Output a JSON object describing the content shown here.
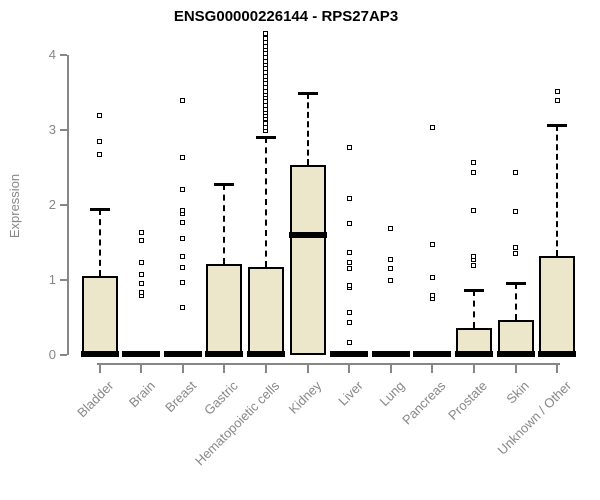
{
  "chart_data": {
    "type": "boxplot",
    "title": "ENSG00000226144 - RPS27AP3",
    "ylabel": "Expression",
    "ylim": [
      0,
      4
    ],
    "yticks": [
      0,
      1,
      2,
      3,
      4
    ],
    "grid": false,
    "box_fill": "#ECE6CB",
    "axis_color": "#878787",
    "label_color": "#878787",
    "categories": [
      "Bladder",
      "Brain",
      "Breast",
      "Gastric",
      "Hematopoietic cells",
      "Kidney",
      "Liver",
      "Lung",
      "Pancreas",
      "Prostate",
      "Skin",
      "Unknown / Other"
    ],
    "boxes": [
      {
        "category": "Bladder",
        "q1": 0,
        "median": 0.02,
        "q3": 1.05,
        "whisker_low": 0,
        "whisker_high": 1.95,
        "outliers": [
          2.68,
          2.85,
          3.2
        ]
      },
      {
        "category": "Brain",
        "q1": 0,
        "median": 0.02,
        "q3": 0,
        "whisker_low": 0,
        "whisker_high": 0,
        "outliers": [
          0.8,
          0.84,
          0.96,
          1.07,
          1.23,
          1.53,
          1.63
        ]
      },
      {
        "category": "Breast",
        "q1": 0,
        "median": 0.02,
        "q3": 0,
        "whisker_low": 0,
        "whisker_high": 0,
        "outliers": [
          0.63,
          0.97,
          1.17,
          1.31,
          1.56,
          1.77,
          1.89,
          1.93,
          2.21,
          2.63,
          3.39
        ]
      },
      {
        "category": "Gastric",
        "q1": 0,
        "median": 0.02,
        "q3": 1.21,
        "whisker_low": 0,
        "whisker_high": 2.28,
        "outliers": []
      },
      {
        "category": "Hematopoietic cells",
        "q1": 0,
        "median": 0.02,
        "q3": 1.17,
        "whisker_low": 0,
        "whisker_high": 2.91,
        "outliers": [
          2.99,
          3.04,
          3.09,
          3.15,
          3.2,
          3.24,
          3.28,
          3.33,
          3.38,
          3.43,
          3.47,
          3.52,
          3.57,
          3.62,
          3.67,
          3.72,
          3.77,
          3.82,
          3.87,
          3.92,
          3.97,
          4.02,
          4.07,
          4.12,
          4.17,
          4.22,
          4.29
        ]
      },
      {
        "category": "Kidney",
        "q1": 0,
        "median": 1.6,
        "q3": 2.53,
        "whisker_low": 0,
        "whisker_high": 3.49,
        "outliers": []
      },
      {
        "category": "Liver",
        "q1": 0,
        "median": 0.02,
        "q3": 0,
        "whisker_low": 0,
        "whisker_high": 0,
        "outliers": [
          0.17,
          0.43,
          0.57,
          0.9,
          0.93,
          1.16,
          1.23,
          1.37,
          1.75,
          2.09,
          2.77
        ]
      },
      {
        "category": "Lung",
        "q1": 0,
        "median": 0.02,
        "q3": 0,
        "whisker_low": 0,
        "whisker_high": 0,
        "outliers": [
          0.99,
          1.16,
          1.27,
          1.69
        ]
      },
      {
        "category": "Pancreas",
        "q1": 0,
        "median": 0.02,
        "q3": 0,
        "whisker_low": 0,
        "whisker_high": 0,
        "outliers": [
          0.75,
          0.79,
          1.04,
          1.48,
          3.04
        ]
      },
      {
        "category": "Prostate",
        "q1": 0,
        "median": 0.02,
        "q3": 0.36,
        "whisker_low": 0,
        "whisker_high": 0.87,
        "outliers": [
          1.2,
          1.27,
          1.31,
          1.93,
          2.43,
          2.57
        ]
      },
      {
        "category": "Skin",
        "q1": 0,
        "median": 0.02,
        "q3": 0.47,
        "whisker_low": 0,
        "whisker_high": 0.96,
        "outliers": [
          1.36,
          1.43,
          1.91,
          2.43
        ]
      },
      {
        "category": "Unknown / Other",
        "q1": 0,
        "median": 0.02,
        "q3": 1.32,
        "whisker_low": 0,
        "whisker_high": 3.07,
        "outliers": [
          3.4,
          3.52
        ]
      }
    ]
  }
}
